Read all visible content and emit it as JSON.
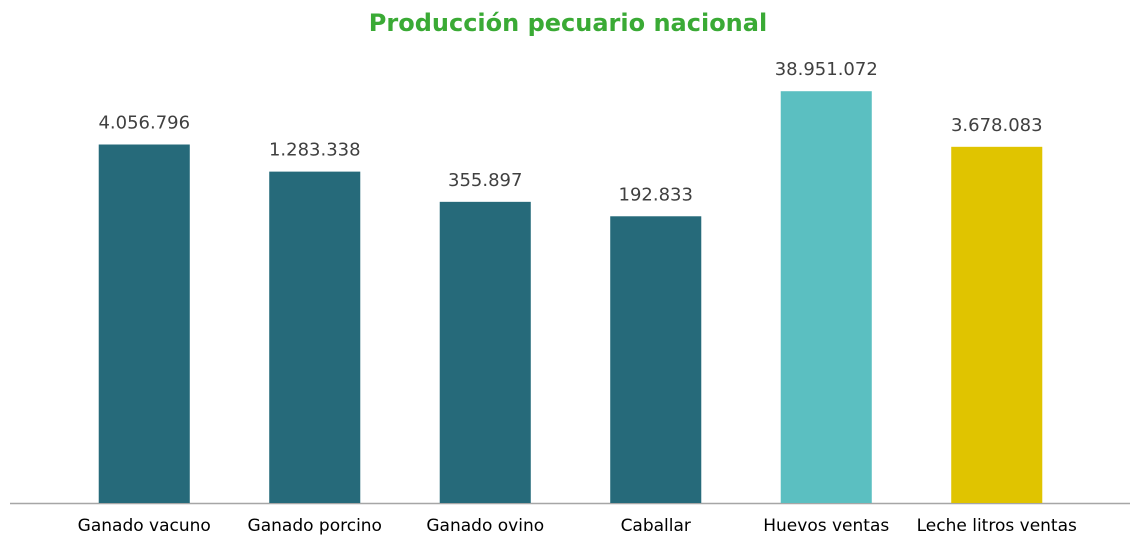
{
  "chart_data": {
    "type": "bar",
    "title": "Producción pecuario nacional",
    "categories": [
      "Ganado vacuno",
      "Ganado porcino",
      "Ganado ovino",
      "Caballar",
      "Huevos ventas",
      "Leche litros ventas"
    ],
    "values": [
      4056796,
      1283338,
      355897,
      192833,
      38951072,
      3678083
    ],
    "value_labels": [
      "4.056.796",
      "1.283.338",
      "355.897",
      "192.833",
      "38.951.072",
      "3.678.083"
    ],
    "colors": [
      "#266a7a",
      "#266a7a",
      "#266a7a",
      "#266a7a",
      "#5bbfc1",
      "#e0c400"
    ],
    "ylim": [
      1,
      100000000
    ],
    "log": true
  }
}
